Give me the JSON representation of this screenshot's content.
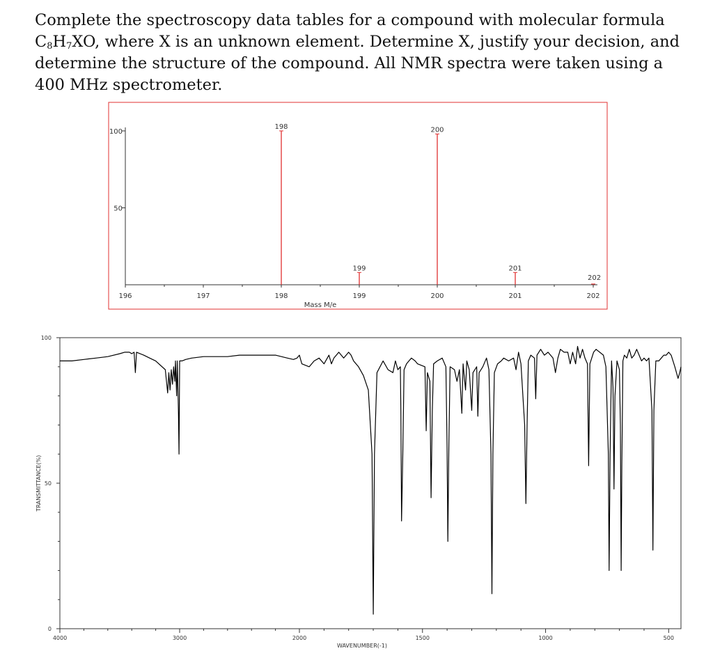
{
  "question": {
    "line1": "Complete the spectroscopy data tables for a compound with molecular formula",
    "formula_c": "C",
    "formula_c_sub": "8",
    "formula_h": "H",
    "formula_h_sub": "7",
    "formula_rest": "XO",
    "line2_rest": ", where X is an unknown element. Determine X, justify your decision, and determine the structure of the compound. All NMR spectra were taken using a 400 MHz spectrometer."
  },
  "colors": {
    "frame": "#e03030",
    "peak": "#e03030",
    "axis": "#333333",
    "trace": "#000000"
  },
  "chart_data": [
    {
      "type": "bar",
      "title": "",
      "xlabel": "Mass M/e",
      "ylabel": "",
      "xlim": [
        196,
        202
      ],
      "ylim": [
        0,
        100
      ],
      "x_ticks": [
        196,
        197,
        198,
        199,
        200,
        201,
        202
      ],
      "y_ticks": [
        100,
        50
      ],
      "series": [
        {
          "x": [
            198,
            199,
            200,
            201,
            202
          ],
          "values": [
            100,
            8,
            98,
            8,
            0.5
          ],
          "labels": [
            "198",
            "199",
            "200",
            "201",
            "202"
          ]
        }
      ],
      "grid": false
    },
    {
      "type": "line",
      "title": "",
      "xlabel": "WAVENUMBER(-1)",
      "ylabel": "TRANSMITTANCE(%)",
      "xlim": [
        4000,
        450
      ],
      "ylim": [
        0,
        100
      ],
      "x_ticks": [
        4000,
        3000,
        2000,
        1500,
        1000,
        500
      ],
      "x_tick_labels": [
        "4000",
        "3000",
        "2000",
        "1500",
        "1000",
        "500"
      ],
      "y_ticks": [
        100,
        50,
        0
      ],
      "y_tick_labels": [
        "100",
        "50",
        "0"
      ],
      "baseline": 92,
      "series": [
        {
          "points": [
            [
              4000,
              92
            ],
            [
              3900,
              92
            ],
            [
              3800,
              92.5
            ],
            [
              3700,
              93
            ],
            [
              3600,
              93.5
            ],
            [
              3500,
              94.5
            ],
            [
              3460,
              95
            ],
            [
              3420,
              95
            ],
            [
              3400,
              94.5
            ],
            [
              3380,
              95
            ],
            [
              3370,
              88
            ],
            [
              3360,
              95
            ],
            [
              3300,
              94
            ],
            [
              3250,
              93
            ],
            [
              3200,
              92
            ],
            [
              3120,
              89
            ],
            [
              3100,
              81
            ],
            [
              3090,
              88
            ],
            [
              3080,
              82
            ],
            [
              3070,
              89
            ],
            [
              3060,
              84
            ],
            [
              3050,
              90
            ],
            [
              3040,
              85
            ],
            [
              3035,
              92
            ],
            [
              3025,
              80
            ],
            [
              3020,
              92
            ],
            [
              3010,
              74
            ],
            [
              3005,
              60
            ],
            [
              3000,
              92
            ],
            [
              2980,
              92
            ],
            [
              2950,
              92.5
            ],
            [
              2900,
              93
            ],
            [
              2800,
              93.5
            ],
            [
              2700,
              93.5
            ],
            [
              2600,
              93.5
            ],
            [
              2500,
              94
            ],
            [
              2400,
              94
            ],
            [
              2300,
              94
            ],
            [
              2200,
              94
            ],
            [
              2100,
              93
            ],
            [
              2050,
              92.5
            ],
            [
              2020,
              93
            ],
            [
              2000,
              94
            ],
            [
              1990,
              91
            ],
            [
              1960,
              90
            ],
            [
              1940,
              92
            ],
            [
              1920,
              93
            ],
            [
              1900,
              91
            ],
            [
              1880,
              94
            ],
            [
              1870,
              91
            ],
            [
              1860,
              93
            ],
            [
              1840,
              95
            ],
            [
              1820,
              93
            ],
            [
              1800,
              95
            ],
            [
              1790,
              94
            ],
            [
              1780,
              92
            ],
            [
              1760,
              90
            ],
            [
              1740,
              87
            ],
            [
              1720,
              82
            ],
            [
              1705,
              60
            ],
            [
              1700,
              5
            ],
            [
              1695,
              60
            ],
            [
              1685,
              88
            ],
            [
              1660,
              92
            ],
            [
              1640,
              89
            ],
            [
              1620,
              88
            ],
            [
              1610,
              92
            ],
            [
              1600,
              89
            ],
            [
              1590,
              90
            ],
            [
              1588,
              75
            ],
            [
              1585,
              37
            ],
            [
              1580,
              60
            ],
            [
              1575,
              89
            ],
            [
              1565,
              91
            ],
            [
              1555,
              92
            ],
            [
              1545,
              93
            ],
            [
              1530,
              92
            ],
            [
              1520,
              91
            ],
            [
              1490,
              90
            ],
            [
              1485,
              68
            ],
            [
              1480,
              88
            ],
            [
              1470,
              85
            ],
            [
              1465,
              45
            ],
            [
              1460,
              75
            ],
            [
              1455,
              91
            ],
            [
              1440,
              92
            ],
            [
              1420,
              93
            ],
            [
              1405,
              90
            ],
            [
              1400,
              62
            ],
            [
              1397,
              30
            ],
            [
              1393,
              62
            ],
            [
              1388,
              90
            ],
            [
              1370,
              89
            ],
            [
              1360,
              85
            ],
            [
              1350,
              89
            ],
            [
              1340,
              74
            ],
            [
              1335,
              91
            ],
            [
              1325,
              82
            ],
            [
              1320,
              92
            ],
            [
              1310,
              89
            ],
            [
              1300,
              75
            ],
            [
              1295,
              88
            ],
            [
              1280,
              90
            ],
            [
              1275,
              73
            ],
            [
              1270,
              88
            ],
            [
              1255,
              90
            ],
            [
              1240,
              93
            ],
            [
              1230,
              89
            ],
            [
              1222,
              60
            ],
            [
              1218,
              12
            ],
            [
              1214,
              60
            ],
            [
              1208,
              88
            ],
            [
              1195,
              91
            ],
            [
              1180,
              92
            ],
            [
              1170,
              93
            ],
            [
              1150,
              92
            ],
            [
              1130,
              93
            ],
            [
              1120,
              89
            ],
            [
              1110,
              95
            ],
            [
              1100,
              91
            ],
            [
              1085,
              70
            ],
            [
              1080,
              43
            ],
            [
              1075,
              70
            ],
            [
              1070,
              92
            ],
            [
              1060,
              94
            ],
            [
              1045,
              93
            ],
            [
              1040,
              79
            ],
            [
              1035,
              94
            ],
            [
              1020,
              96
            ],
            [
              1005,
              94
            ],
            [
              990,
              95
            ],
            [
              970,
              93
            ],
            [
              960,
              88
            ],
            [
              950,
              93
            ],
            [
              940,
              96
            ],
            [
              925,
              95
            ],
            [
              910,
              95
            ],
            [
              900,
              91
            ],
            [
              890,
              95
            ],
            [
              878,
              91
            ],
            [
              870,
              97
            ],
            [
              860,
              93
            ],
            [
              850,
              96
            ],
            [
              840,
              93
            ],
            [
              830,
              91
            ],
            [
              825,
              56
            ],
            [
              820,
              91
            ],
            [
              805,
              95
            ],
            [
              795,
              96
            ],
            [
              780,
              95
            ],
            [
              765,
              94
            ],
            [
              755,
              90
            ],
            [
              745,
              60
            ],
            [
              742,
              20
            ],
            [
              738,
              60
            ],
            [
              732,
              92
            ],
            [
              726,
              83
            ],
            [
              722,
              48
            ],
            [
              718,
              80
            ],
            [
              710,
              92
            ],
            [
              700,
              89
            ],
            [
              696,
              70
            ],
            [
              693,
              20
            ],
            [
              690,
              56
            ],
            [
              686,
              92
            ],
            [
              680,
              94
            ],
            [
              670,
              93
            ],
            [
              660,
              96
            ],
            [
              650,
              93
            ],
            [
              640,
              94
            ],
            [
              630,
              96
            ],
            [
              620,
              94
            ],
            [
              610,
              92
            ],
            [
              600,
              93
            ],
            [
              590,
              92
            ],
            [
              580,
              93
            ],
            [
              568,
              75
            ],
            [
              564,
              27
            ],
            [
              560,
              75
            ],
            [
              552,
              92
            ],
            [
              540,
              92
            ],
            [
              530,
              93
            ],
            [
              520,
              94
            ],
            [
              510,
              94
            ],
            [
              500,
              95
            ],
            [
              490,
              94
            ],
            [
              475,
              90
            ],
            [
              462,
              86
            ],
            [
              455,
              88
            ],
            [
              450,
              90
            ]
          ]
        }
      ]
    }
  ]
}
